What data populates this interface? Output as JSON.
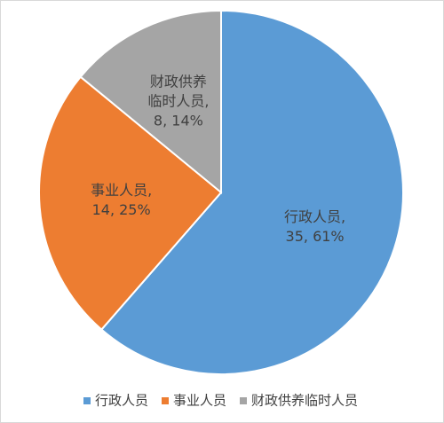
{
  "chart_data": {
    "type": "pie",
    "categories": [
      "行政人员",
      "事业人员",
      "财政供养临时人员"
    ],
    "values": [
      35,
      14,
      8
    ],
    "value_labels": [
      [
        "行政人员,",
        "35, 61%"
      ],
      [
        "事业人员,",
        "14, 25%"
      ],
      [
        "财政供养",
        "临时人员,",
        "8, 14%"
      ]
    ],
    "colors": [
      "#5b9bd5",
      "#ed7d31",
      "#a5a5a5"
    ],
    "legend": "bottom"
  }
}
